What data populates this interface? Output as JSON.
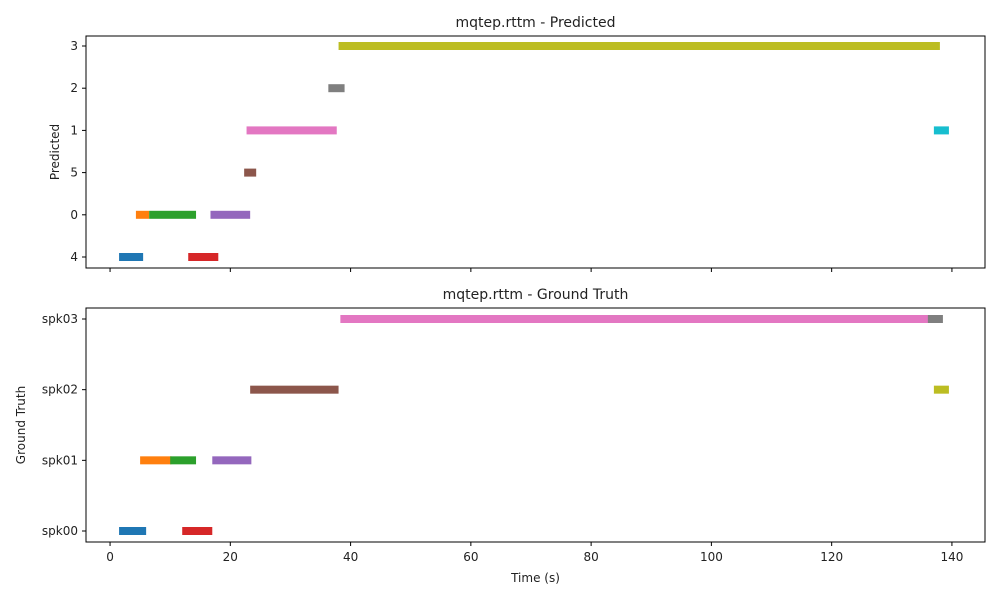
{
  "chart_data": [
    {
      "type": "timeline",
      "title": "mqtep.rttm - Predicted",
      "ylabel": "Predicted",
      "xlabel": "",
      "xlim": [
        -4,
        145.5
      ],
      "xticks": [
        0,
        20,
        40,
        60,
        80,
        100,
        120,
        140
      ],
      "show_xtick_labels": false,
      "categories": [
        "4",
        "0",
        "5",
        "1",
        "2",
        "3"
      ],
      "segments": [
        {
          "label": "4",
          "start": 1.5,
          "end": 5.5,
          "color": "#1f77b4"
        },
        {
          "label": "0",
          "start": 4.3,
          "end": 6.5,
          "color": "#ff7f0e"
        },
        {
          "label": "0",
          "start": 6.5,
          "end": 14.3,
          "color": "#2ca02c"
        },
        {
          "label": "4",
          "start": 13.0,
          "end": 18.0,
          "color": "#d62728"
        },
        {
          "label": "0",
          "start": 16.7,
          "end": 23.3,
          "color": "#9467bd"
        },
        {
          "label": "5",
          "start": 22.3,
          "end": 24.3,
          "color": "#8c564b"
        },
        {
          "label": "1",
          "start": 22.7,
          "end": 37.7,
          "color": "#e377c2"
        },
        {
          "label": "2",
          "start": 36.3,
          "end": 39.0,
          "color": "#7f7f7f"
        },
        {
          "label": "3",
          "start": 38.0,
          "end": 138.0,
          "color": "#bcbd22"
        },
        {
          "label": "1",
          "start": 137.0,
          "end": 139.5,
          "color": "#17becf"
        }
      ]
    },
    {
      "type": "timeline",
      "title": "mqtep.rttm - Ground Truth",
      "ylabel": "Ground Truth",
      "xlabel": "Time (s)",
      "xlim": [
        -4,
        145.5
      ],
      "xticks": [
        0,
        20,
        40,
        60,
        80,
        100,
        120,
        140
      ],
      "show_xtick_labels": true,
      "categories": [
        "spk00",
        "spk01",
        "spk02",
        "spk03"
      ],
      "segments": [
        {
          "label": "spk00",
          "start": 1.5,
          "end": 6.0,
          "color": "#1f77b4"
        },
        {
          "label": "spk01",
          "start": 5.0,
          "end": 10.2,
          "color": "#ff7f0e"
        },
        {
          "label": "spk01",
          "start": 10.0,
          "end": 14.3,
          "color": "#2ca02c"
        },
        {
          "label": "spk00",
          "start": 12.0,
          "end": 17.0,
          "color": "#d62728"
        },
        {
          "label": "spk01",
          "start": 17.0,
          "end": 23.5,
          "color": "#9467bd"
        },
        {
          "label": "spk02",
          "start": 23.3,
          "end": 38.0,
          "color": "#8c564b"
        },
        {
          "label": "spk03",
          "start": 38.3,
          "end": 136.5,
          "color": "#e377c2"
        },
        {
          "label": "spk03",
          "start": 136.0,
          "end": 138.5,
          "color": "#7f7f7f"
        },
        {
          "label": "spk02",
          "start": 137.0,
          "end": 139.5,
          "color": "#bcbd22"
        }
      ]
    }
  ]
}
